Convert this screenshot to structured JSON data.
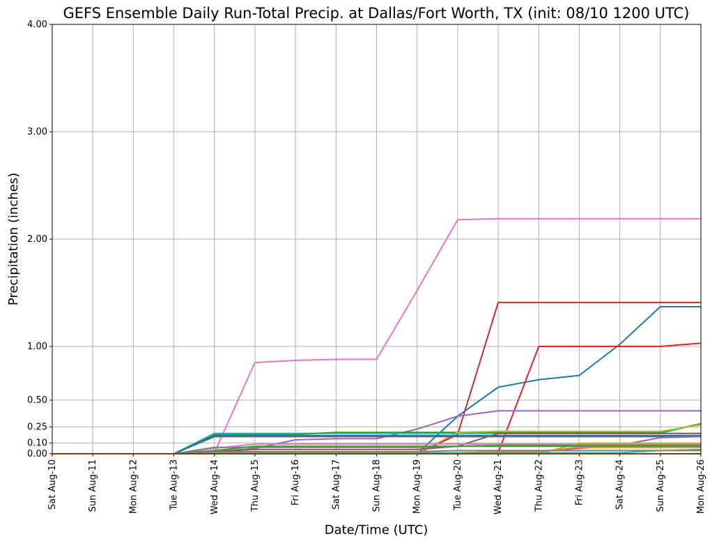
{
  "chart_data": {
    "type": "line",
    "title": "GEFS Ensemble Daily Run-Total Precip. at Dallas/Fort Worth, TX (init: 08/10 1200 UTC)",
    "xlabel": "Date/Time (UTC)",
    "ylabel": "Precipitation (inches)",
    "categories": [
      "Sat Aug-10",
      "Sun Aug-11",
      "Mon Aug-12",
      "Tue Aug-13",
      "Wed Aug-14",
      "Thu Aug-15",
      "Fri Aug-16",
      "Sat Aug-17",
      "Sun Aug-18",
      "Mon Aug-19",
      "Tue Aug-20",
      "Wed Aug-21",
      "Thu Aug-22",
      "Fri Aug-23",
      "Sat Aug-24",
      "Sun Aug-25",
      "Mon Aug-26"
    ],
    "yticks": [
      0,
      0.1,
      0.25,
      0.5,
      1,
      2,
      3,
      4
    ],
    "ytick_labels": [
      "0.00",
      "0.10",
      "0.25",
      "0.50",
      "1.00",
      "2.00",
      "3.00",
      "4.00"
    ],
    "ylim": [
      0,
      4
    ],
    "grid": true,
    "series": [
      {
        "color": "#e377c2",
        "values": [
          0,
          0,
          0,
          0,
          0.01,
          0.85,
          0.87,
          0.88,
          0.88,
          1.52,
          2.18,
          2.19,
          2.19,
          2.19,
          2.19,
          2.19,
          2.19
        ]
      },
      {
        "color": "#d62728",
        "values": [
          0,
          0,
          0,
          0,
          0,
          0,
          0,
          0,
          0,
          0,
          0.18,
          1.41,
          1.41,
          1.41,
          1.41,
          1.41,
          1.41
        ]
      },
      {
        "color": "#1f77b4",
        "values": [
          0,
          0,
          0,
          0,
          0,
          0,
          0,
          0,
          0,
          0,
          0.35,
          0.62,
          0.69,
          0.73,
          1.02,
          1.37,
          1.37
        ]
      },
      {
        "color": "#d62728",
        "values": [
          0,
          0,
          0,
          0,
          0,
          0,
          0,
          0,
          0,
          0,
          0,
          0.01,
          1.0,
          1.0,
          1.0,
          1.0,
          1.03
        ]
      },
      {
        "color": "#9467bd",
        "values": [
          0,
          0,
          0,
          0,
          0.02,
          0.05,
          0.13,
          0.14,
          0.14,
          0.23,
          0.35,
          0.4,
          0.4,
          0.4,
          0.4,
          0.4,
          0.4
        ]
      },
      {
        "color": "#17becf",
        "values": [
          0,
          0,
          0,
          0,
          0.19,
          0.19,
          0.19,
          0.19,
          0.19,
          0.19,
          0.19,
          0.19,
          0.19,
          0.19,
          0.19,
          0.19,
          0.28
        ]
      },
      {
        "color": "#2ca02c",
        "values": [
          0,
          0,
          0,
          0,
          0.18,
          0.18,
          0.18,
          0.2,
          0.2,
          0.2,
          0.2,
          0.2,
          0.2,
          0.2,
          0.2,
          0.2,
          0.28
        ]
      },
      {
        "color": "#bcbd22",
        "values": [
          0,
          0,
          0,
          0,
          0,
          0,
          0,
          0,
          0,
          0,
          0.2,
          0.21,
          0.21,
          0.21,
          0.21,
          0.21,
          0.27
        ]
      },
      {
        "color": "#8c564b",
        "values": [
          0,
          0,
          0,
          0,
          0.16,
          0.16,
          0.16,
          0.16,
          0.16,
          0.16,
          0.16,
          0.16,
          0.16,
          0.16,
          0.16,
          0.16,
          0.16
        ]
      },
      {
        "color": "#1f77b4",
        "values": [
          0,
          0,
          0,
          0,
          0.17,
          0.17,
          0.17,
          0.17,
          0.17,
          0.17,
          0.17,
          0.17,
          0.17,
          0.17,
          0.17,
          0.17,
          0.17
        ]
      },
      {
        "color": "#8c564b",
        "values": [
          0,
          0,
          0,
          0,
          0.02,
          0.04,
          0.04,
          0.04,
          0.04,
          0.04,
          0.07,
          0.19,
          0.19,
          0.19,
          0.19,
          0.19,
          0.19
        ]
      },
      {
        "color": "#9467bd",
        "values": [
          0,
          0,
          0,
          0,
          0,
          0,
          0,
          0,
          0,
          0,
          0,
          0,
          0.02,
          0.05,
          0.08,
          0.15,
          0.16
        ]
      },
      {
        "color": "#e377c2",
        "values": [
          0,
          0,
          0,
          0,
          0.05,
          0.09,
          0.09,
          0.09,
          0.09,
          0.09,
          0.09,
          0.09,
          0.09,
          0.09,
          0.09,
          0.09,
          0.09
        ]
      },
      {
        "color": "#bcbd22",
        "values": [
          0,
          0,
          0,
          0,
          0,
          0,
          0,
          0,
          0,
          0,
          0,
          0,
          0,
          0.1,
          0.1,
          0.1,
          0.1
        ]
      },
      {
        "color": "#7f7f7f",
        "values": [
          0,
          0,
          0,
          0,
          0.06,
          0.06,
          0.06,
          0.06,
          0.06,
          0.06,
          0.07,
          0.08,
          0.08,
          0.08,
          0.08,
          0.08,
          0.08
        ]
      },
      {
        "color": "#2ca02c",
        "values": [
          0,
          0,
          0,
          0,
          0.03,
          0.07,
          0.07,
          0.07,
          0.07,
          0.07,
          0.07,
          0.07,
          0.07,
          0.07,
          0.07,
          0.07,
          0.07
        ]
      },
      {
        "color": "#ff7f0e",
        "values": [
          0,
          0,
          0,
          0,
          0,
          0,
          0,
          0,
          0,
          0,
          0.01,
          0.02,
          0.02,
          0.06,
          0.06,
          0.06,
          0.06
        ]
      },
      {
        "color": "#17becf",
        "values": [
          0,
          0,
          0,
          0,
          0.01,
          0.01,
          0.01,
          0.01,
          0.01,
          0.01,
          0.01,
          0.01,
          0.01,
          0.01,
          0.01,
          0.03,
          0.04
        ]
      },
      {
        "color": "#7f7f7f",
        "values": [
          0,
          0,
          0,
          0,
          0.02,
          0.02,
          0.02,
          0.02,
          0.02,
          0.02,
          0.03,
          0.03,
          0.03,
          0.03,
          0.03,
          0.03,
          0.03
        ]
      },
      {
        "color": "#ff7f0e",
        "values": [
          0,
          0,
          0,
          0,
          0,
          0,
          0,
          0,
          0,
          0,
          0,
          0,
          0,
          0,
          0,
          0,
          0
        ]
      }
    ]
  }
}
